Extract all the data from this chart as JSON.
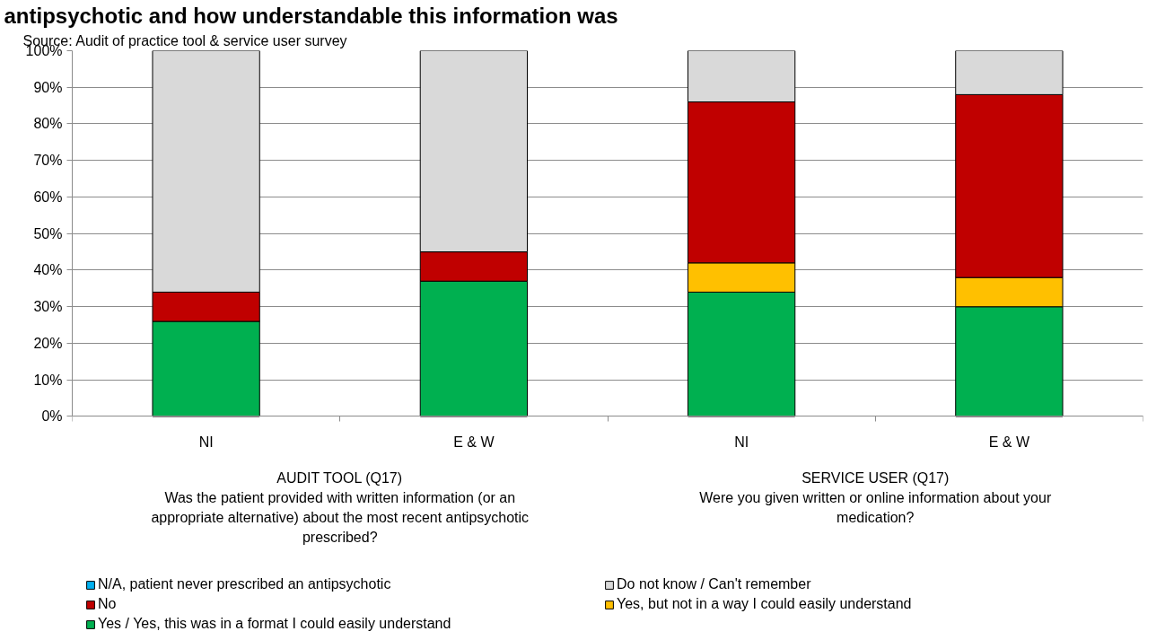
{
  "chart_data": {
    "type": "bar",
    "title": "antipsychotic and how understandable this information was",
    "annotations": [
      "Source: Audit of practice tool & service user survey",
      "AUDIT TOOL (Q17)\nWas the patient provided with written information (or an appropriate alternative) about the most recent antipsychotic prescribed?",
      "SERVICE USER (Q17)\nWere you given written or online information about your medication?"
    ],
    "categories": [
      "NI",
      "E & W",
      "NI",
      "E & W"
    ],
    "stacked": true,
    "series": [
      {
        "name": "Yes / Yes, this was in a format I could easily understand",
        "color": "#00b050",
        "values": [
          26,
          37,
          34,
          30
        ]
      },
      {
        "name": "Yes, but not in a way I could easily understand",
        "color": "#ffc000",
        "values": [
          null,
          null,
          8,
          8
        ]
      },
      {
        "name": "No",
        "color": "#c00000",
        "values": [
          8,
          8,
          44,
          50
        ]
      },
      {
        "name": "Do not know / Can't remember",
        "color": "#d9d9d9",
        "values": [
          66,
          55,
          14,
          12
        ]
      },
      {
        "name": "N/A, patient never prescribed an antipsychotic",
        "color": "#00b0f0",
        "values": [
          0,
          0,
          null,
          null
        ]
      }
    ],
    "ylim": [
      0,
      100
    ],
    "yticks": [
      {
        "value": 0,
        "label": "0%"
      },
      {
        "value": 10,
        "label": "10%"
      },
      {
        "value": 20,
        "label": "20%"
      },
      {
        "value": 30,
        "label": "30%"
      },
      {
        "value": 40,
        "label": "40%"
      },
      {
        "value": 50,
        "label": "50%"
      },
      {
        "value": 60,
        "label": "60%"
      },
      {
        "value": 70,
        "label": "70%"
      },
      {
        "value": 80,
        "label": "80%"
      },
      {
        "value": 90,
        "label": "90%"
      },
      {
        "value": 100,
        "label": "100%"
      }
    ],
    "grid": "y",
    "legend": "bottom"
  }
}
